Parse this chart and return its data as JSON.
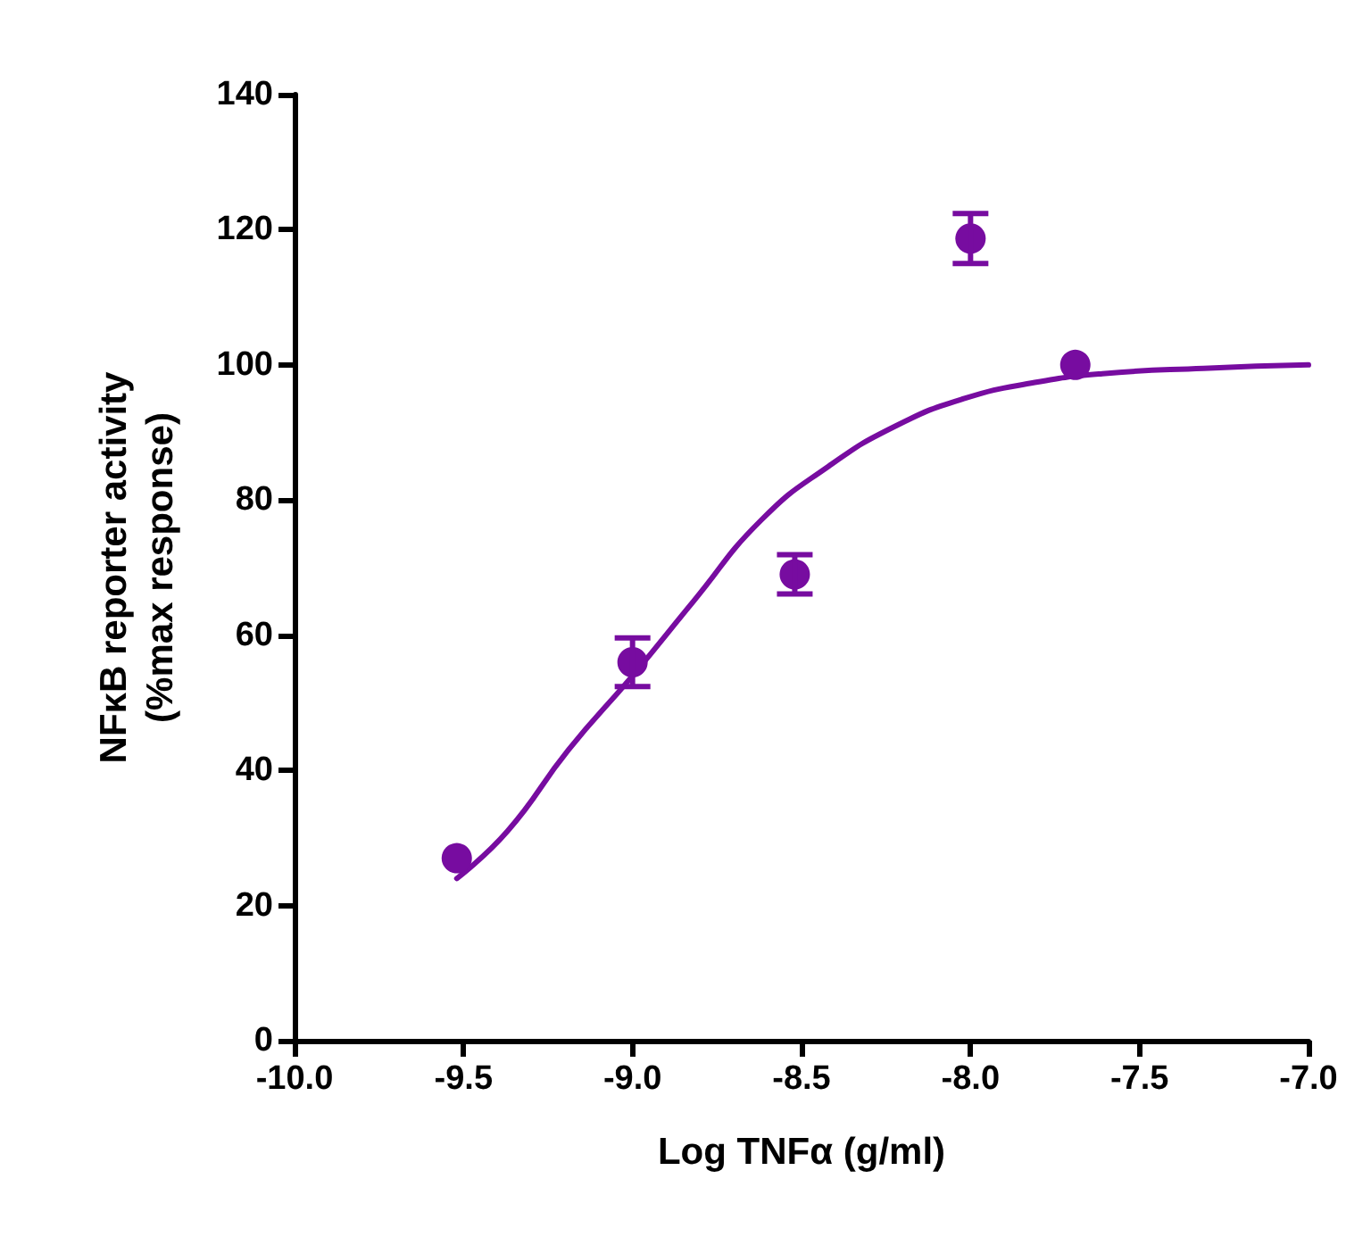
{
  "chart_data": {
    "type": "scatter",
    "xlabel": "Log TNFα (g/ml)",
    "ylabel": "NFκB reporter activity\n(%max response)",
    "xlim": [
      -10,
      -7
    ],
    "xticks": [
      {
        "value": -10,
        "label": "-10.0"
      },
      {
        "value": -9.5,
        "label": "-9.5"
      },
      {
        "value": -9,
        "label": "-9.0"
      },
      {
        "value": -8.5,
        "label": "-8.5"
      },
      {
        "value": -8,
        "label": "-8.0"
      },
      {
        "value": -7.5,
        "label": "-7.5"
      },
      {
        "value": -7,
        "label": "-7.0"
      }
    ],
    "ylim": [
      0,
      140
    ],
    "yticks": [
      0,
      20,
      40,
      60,
      80,
      100,
      120,
      140
    ],
    "grid": false,
    "marker": "circle",
    "series": [
      {
        "color": "#770ca0",
        "x": [
          -9.52,
          -9.0,
          -8.52,
          -8.0,
          -7.69
        ],
        "values": [
          27,
          56,
          69,
          118.7,
          100
        ],
        "errors": [
          null,
          3.6,
          2.9,
          3.7,
          null
        ]
      },
      {
        "type": "line",
        "color": "#770ca0",
        "line_style": "solid",
        "marker": "none",
        "x": [
          -9.52,
          -9.37,
          -9.19,
          -9.0,
          -8.82,
          -8.62,
          -8.42,
          -8.22,
          -8.02,
          -7.81,
          -7.61,
          -7.31,
          -7.0
        ],
        "values": [
          24,
          31,
          43,
          54,
          65,
          77,
          85,
          91,
          95,
          97.4,
          98.7,
          99.5,
          100
        ]
      }
    ]
  }
}
